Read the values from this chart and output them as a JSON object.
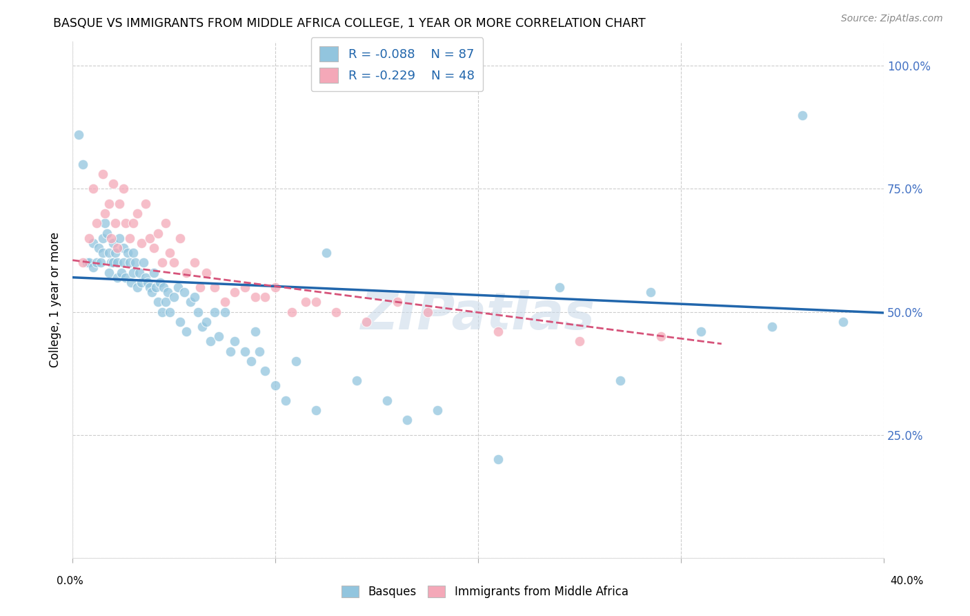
{
  "title": "BASQUE VS IMMIGRANTS FROM MIDDLE AFRICA COLLEGE, 1 YEAR OR MORE CORRELATION CHART",
  "source": "Source: ZipAtlas.com",
  "ylabel": "College, 1 year or more",
  "ytick_labels": [
    "",
    "25.0%",
    "50.0%",
    "75.0%",
    "100.0%"
  ],
  "ytick_vals": [
    0.0,
    0.25,
    0.5,
    0.75,
    1.0
  ],
  "xlim": [
    0.0,
    0.4
  ],
  "ylim": [
    0.0,
    1.05
  ],
  "legend1_r": "R = -0.088",
  "legend1_n": "N = 87",
  "legend2_r": "R = -0.229",
  "legend2_n": "N = 48",
  "blue_color": "#92c5de",
  "pink_color": "#f4a8b8",
  "line_blue": "#2166ac",
  "line_pink": "#d6537a",
  "watermark": "ZIPatlas",
  "blue_line_x": [
    0.0,
    0.4
  ],
  "blue_line_y": [
    0.57,
    0.498
  ],
  "pink_line_x": [
    0.0,
    0.32
  ],
  "pink_line_y": [
    0.605,
    0.435
  ],
  "basques_x": [
    0.003,
    0.005,
    0.007,
    0.008,
    0.01,
    0.01,
    0.012,
    0.013,
    0.014,
    0.015,
    0.015,
    0.016,
    0.017,
    0.018,
    0.018,
    0.019,
    0.02,
    0.02,
    0.021,
    0.022,
    0.022,
    0.023,
    0.024,
    0.025,
    0.025,
    0.026,
    0.027,
    0.028,
    0.029,
    0.03,
    0.03,
    0.031,
    0.032,
    0.033,
    0.034,
    0.035,
    0.036,
    0.037,
    0.038,
    0.039,
    0.04,
    0.041,
    0.042,
    0.043,
    0.044,
    0.045,
    0.046,
    0.047,
    0.048,
    0.05,
    0.052,
    0.053,
    0.055,
    0.056,
    0.058,
    0.06,
    0.062,
    0.064,
    0.066,
    0.068,
    0.07,
    0.072,
    0.075,
    0.078,
    0.08,
    0.085,
    0.088,
    0.09,
    0.092,
    0.095,
    0.1,
    0.105,
    0.11,
    0.12,
    0.125,
    0.14,
    0.155,
    0.165,
    0.18,
    0.21,
    0.24,
    0.27,
    0.285,
    0.31,
    0.345,
    0.36,
    0.38
  ],
  "basques_y": [
    0.86,
    0.8,
    0.6,
    0.6,
    0.64,
    0.59,
    0.6,
    0.63,
    0.6,
    0.62,
    0.65,
    0.68,
    0.66,
    0.62,
    0.58,
    0.6,
    0.64,
    0.6,
    0.62,
    0.6,
    0.57,
    0.65,
    0.58,
    0.63,
    0.6,
    0.57,
    0.62,
    0.6,
    0.56,
    0.62,
    0.58,
    0.6,
    0.55,
    0.58,
    0.56,
    0.6,
    0.57,
    0.56,
    0.55,
    0.54,
    0.58,
    0.55,
    0.52,
    0.56,
    0.5,
    0.55,
    0.52,
    0.54,
    0.5,
    0.53,
    0.55,
    0.48,
    0.54,
    0.46,
    0.52,
    0.53,
    0.5,
    0.47,
    0.48,
    0.44,
    0.5,
    0.45,
    0.5,
    0.42,
    0.44,
    0.42,
    0.4,
    0.46,
    0.42,
    0.38,
    0.35,
    0.32,
    0.4,
    0.3,
    0.62,
    0.36,
    0.32,
    0.28,
    0.3,
    0.2,
    0.55,
    0.36,
    0.54,
    0.46,
    0.47,
    0.9,
    0.48
  ],
  "immigrants_x": [
    0.005,
    0.008,
    0.01,
    0.012,
    0.015,
    0.016,
    0.018,
    0.019,
    0.02,
    0.021,
    0.022,
    0.023,
    0.025,
    0.026,
    0.028,
    0.03,
    0.032,
    0.034,
    0.036,
    0.038,
    0.04,
    0.042,
    0.044,
    0.046,
    0.048,
    0.05,
    0.053,
    0.056,
    0.06,
    0.063,
    0.066,
    0.07,
    0.075,
    0.08,
    0.085,
    0.09,
    0.095,
    0.1,
    0.108,
    0.115,
    0.12,
    0.13,
    0.145,
    0.16,
    0.175,
    0.21,
    0.25,
    0.29
  ],
  "immigrants_y": [
    0.6,
    0.65,
    0.75,
    0.68,
    0.78,
    0.7,
    0.72,
    0.65,
    0.76,
    0.68,
    0.63,
    0.72,
    0.75,
    0.68,
    0.65,
    0.68,
    0.7,
    0.64,
    0.72,
    0.65,
    0.63,
    0.66,
    0.6,
    0.68,
    0.62,
    0.6,
    0.65,
    0.58,
    0.6,
    0.55,
    0.58,
    0.55,
    0.52,
    0.54,
    0.55,
    0.53,
    0.53,
    0.55,
    0.5,
    0.52,
    0.52,
    0.5,
    0.48,
    0.52,
    0.5,
    0.46,
    0.44,
    0.45
  ]
}
